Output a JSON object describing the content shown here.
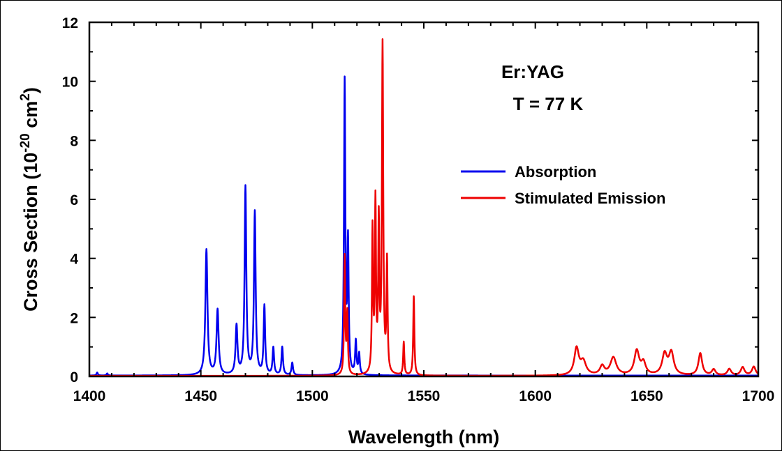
{
  "chart_data": {
    "type": "line",
    "title": "",
    "xlabel": "Wavelength (nm)",
    "ylabel": {
      "prefix": "Cross Section (10",
      "exp1": "-20",
      "middle": " cm",
      "exp2": "2",
      "suffix": ")"
    },
    "xlim": [
      1400,
      1700
    ],
    "ylim": [
      0,
      12
    ],
    "xticks": [
      "1400",
      "1450",
      "1500",
      "1550",
      "1600",
      "1650",
      "1700"
    ],
    "yticks": [
      "0",
      "2",
      "4",
      "6",
      "8",
      "10",
      "12"
    ],
    "grid": false,
    "legend_position": "center-right",
    "annotations": [
      "Er:YAG",
      "T = 77 K"
    ],
    "series": [
      {
        "name": "Absorption",
        "color": "#0000ee",
        "baseline": 0.03,
        "peaks": [
          [
            1403.5,
            0.1,
            0.35
          ],
          [
            1408.0,
            0.07,
            0.35
          ],
          [
            1452.5,
            4.25,
            0.55
          ],
          [
            1457.5,
            2.2,
            0.55
          ],
          [
            1466.0,
            1.65,
            0.5
          ],
          [
            1470.0,
            6.35,
            0.45
          ],
          [
            1474.2,
            5.5,
            0.45
          ],
          [
            1478.5,
            2.32,
            0.4
          ],
          [
            1482.5,
            0.92,
            0.4
          ],
          [
            1486.5,
            0.95,
            0.4
          ],
          [
            1491.0,
            0.42,
            0.4
          ],
          [
            1514.5,
            9.9,
            0.35
          ],
          [
            1516.0,
            4.4,
            0.35
          ],
          [
            1519.5,
            1.12,
            0.35
          ],
          [
            1521.0,
            0.7,
            0.35
          ]
        ]
      },
      {
        "name": "Stimulated Emission",
        "color": "#ee0000",
        "baseline": 0.02,
        "peaks": [
          [
            1514.5,
            4.0,
            0.3
          ],
          [
            1515.7,
            2.05,
            0.3
          ],
          [
            1527.0,
            4.85,
            0.3
          ],
          [
            1528.3,
            5.7,
            0.3
          ],
          [
            1529.8,
            5.0,
            0.3
          ],
          [
            1531.5,
            11.1,
            0.35
          ],
          [
            1533.5,
            3.75,
            0.3
          ],
          [
            1541.0,
            1.12,
            0.3
          ],
          [
            1545.5,
            2.68,
            0.3
          ],
          [
            1618.5,
            0.9,
            1.2
          ],
          [
            1621.5,
            0.45,
            1.5
          ],
          [
            1630.0,
            0.3,
            1.2
          ],
          [
            1635.0,
            0.6,
            1.6
          ],
          [
            1645.5,
            0.82,
            1.3
          ],
          [
            1648.5,
            0.4,
            1.2
          ],
          [
            1658.0,
            0.7,
            1.3
          ],
          [
            1661.0,
            0.75,
            1.3
          ],
          [
            1674.0,
            0.75,
            1.0
          ],
          [
            1680.0,
            0.2,
            1.0
          ],
          [
            1687.0,
            0.22,
            1.0
          ],
          [
            1693.0,
            0.28,
            1.0
          ],
          [
            1698.0,
            0.3,
            1.0
          ]
        ]
      }
    ]
  }
}
